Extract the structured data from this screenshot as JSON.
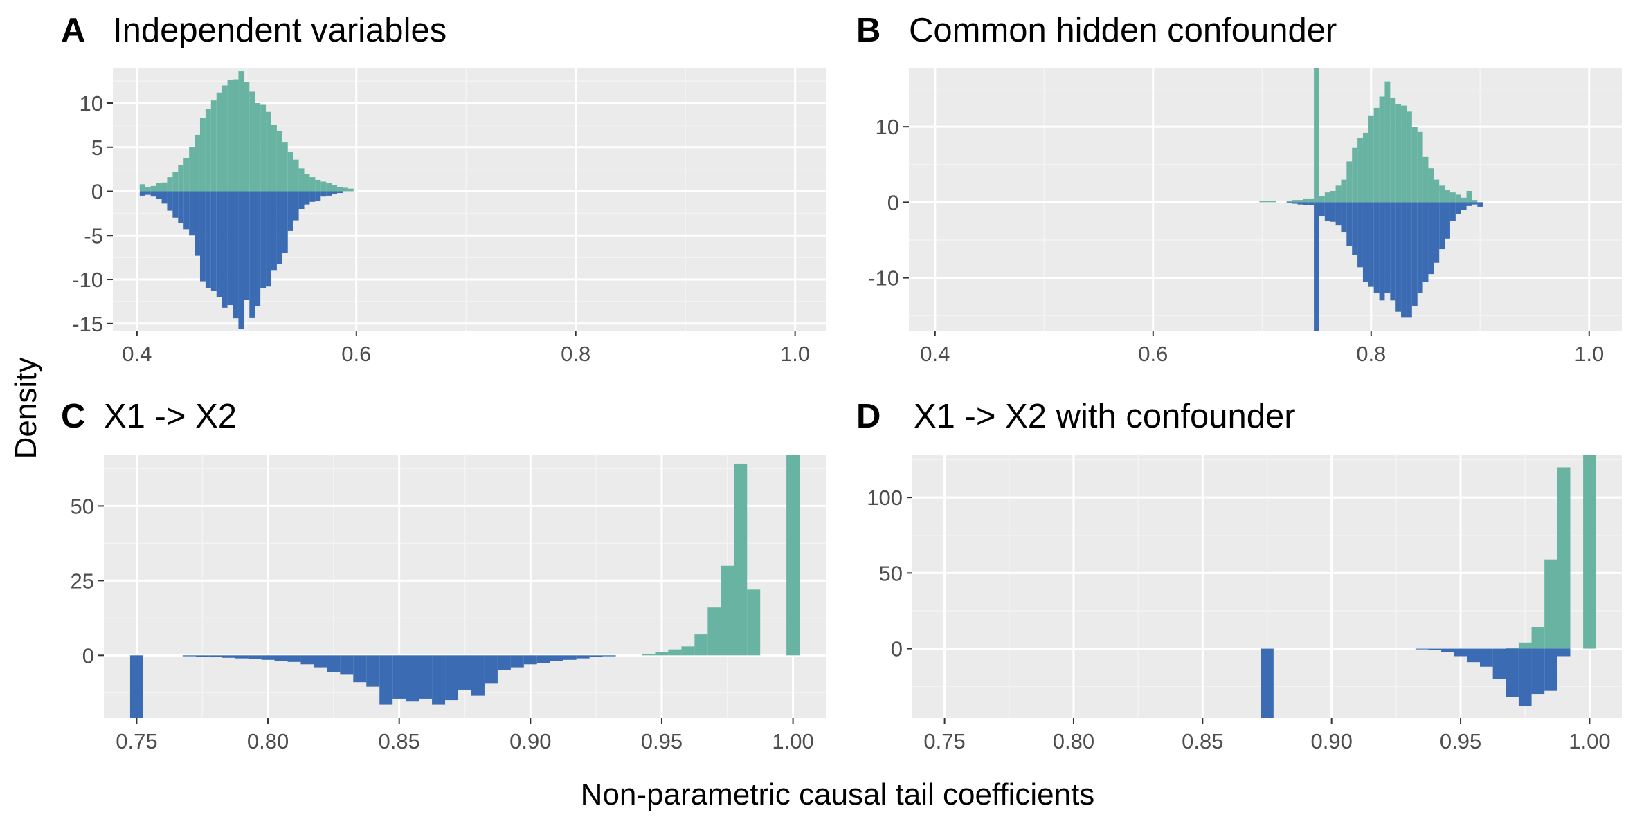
{
  "figure": {
    "ylabel": "Density",
    "xlabel": "Non-parametric causal tail coefficients"
  },
  "colors": {
    "upper": "#69b3a2",
    "lower": "#3a6bb3",
    "panel_bg": "#ebebeb",
    "grid_major": "#ffffff",
    "grid_minor": "#f4f4f4"
  },
  "chart_data": [
    {
      "type": "bar",
      "letter": "A",
      "title": "Independent variables",
      "xlim": [
        0.378,
        1.028
      ],
      "ylim": [
        -15.8,
        14.0
      ],
      "xticks": [
        0.4,
        0.6,
        0.8,
        1.0
      ],
      "xtick_labels": [
        "0.4",
        "0.6",
        "0.8",
        "1.0"
      ],
      "yticks": [
        10,
        5,
        0,
        -5,
        -10,
        -15
      ],
      "ytick_labels": [
        "10",
        "5",
        "0",
        "-5",
        "-10",
        "-15"
      ],
      "bin_width": 0.005,
      "upper": {
        "x": [
          0.405,
          0.41,
          0.415,
          0.42,
          0.425,
          0.43,
          0.435,
          0.44,
          0.445,
          0.45,
          0.455,
          0.46,
          0.465,
          0.47,
          0.475,
          0.48,
          0.485,
          0.49,
          0.495,
          0.5,
          0.505,
          0.51,
          0.515,
          0.52,
          0.525,
          0.53,
          0.535,
          0.54,
          0.545,
          0.55,
          0.555,
          0.56,
          0.565,
          0.57,
          0.575,
          0.58,
          0.585,
          0.59,
          0.595
        ],
        "y": [
          0.8,
          0.5,
          0.6,
          0.9,
          1.0,
          1.6,
          2.2,
          3.0,
          3.8,
          5.0,
          6.4,
          8.3,
          9.3,
          10.3,
          11.2,
          12.0,
          12.6,
          12.7,
          13.6,
          12.4,
          11.3,
          10.0,
          9.8,
          9.0,
          7.5,
          6.8,
          5.6,
          4.5,
          3.6,
          2.6,
          2.0,
          1.6,
          1.3,
          1.1,
          0.9,
          0.7,
          0.5,
          0.4,
          0.3
        ]
      },
      "lower": {
        "x": [
          0.405,
          0.41,
          0.415,
          0.42,
          0.425,
          0.43,
          0.435,
          0.44,
          0.445,
          0.45,
          0.455,
          0.46,
          0.465,
          0.47,
          0.475,
          0.48,
          0.485,
          0.49,
          0.495,
          0.5,
          0.505,
          0.51,
          0.515,
          0.52,
          0.525,
          0.53,
          0.535,
          0.54,
          0.545,
          0.55,
          0.555,
          0.56,
          0.565,
          0.57,
          0.575,
          0.58,
          0.585
        ],
        "y": [
          -0.5,
          -0.4,
          -0.6,
          -0.9,
          -1.4,
          -2.2,
          -3.0,
          -3.6,
          -4.3,
          -5.0,
          -7.3,
          -10.2,
          -11.0,
          -11.3,
          -12.0,
          -13.2,
          -12.9,
          -14.4,
          -15.6,
          -12.3,
          -14.3,
          -13.0,
          -11.0,
          -10.8,
          -9.0,
          -8.2,
          -7.0,
          -4.5,
          -3.3,
          -2.0,
          -1.5,
          -1.2,
          -1.1,
          -0.6,
          -0.5,
          -0.3,
          -0.2
        ]
      }
    },
    {
      "type": "bar",
      "letter": "B",
      "title": "Common hidden confounder",
      "xlim": [
        0.376,
        1.03
      ],
      "ylim": [
        -17.0,
        17.8
      ],
      "xticks": [
        0.4,
        0.6,
        0.8,
        1.0
      ],
      "xtick_labels": [
        "0.4",
        "0.6",
        "0.8",
        "1.0"
      ],
      "yticks": [
        10,
        0,
        -10
      ],
      "ytick_labels": [
        "10",
        "0",
        "-10"
      ],
      "bin_width": 0.005,
      "upper": {
        "x": [
          0.7,
          0.705,
          0.71,
          0.725,
          0.73,
          0.735,
          0.74,
          0.745,
          0.75,
          0.755,
          0.76,
          0.765,
          0.77,
          0.775,
          0.78,
          0.785,
          0.79,
          0.795,
          0.8,
          0.805,
          0.81,
          0.815,
          0.82,
          0.825,
          0.83,
          0.835,
          0.84,
          0.845,
          0.85,
          0.855,
          0.86,
          0.865,
          0.87,
          0.875,
          0.88,
          0.885,
          0.89,
          0.895
        ],
        "y": [
          0.2,
          0.2,
          0.2,
          0.2,
          0.3,
          0.3,
          0.5,
          0.5,
          17.8,
          0.8,
          1.3,
          1.5,
          2.2,
          3.0,
          5.4,
          7.2,
          8.5,
          9.2,
          11.5,
          12.5,
          14.0,
          16.0,
          13.8,
          13.0,
          12.8,
          12.0,
          10.0,
          9.3,
          6.0,
          4.5,
          3.0,
          2.2,
          1.6,
          1.3,
          1.0,
          0.6,
          1.5,
          0.3
        ]
      },
      "lower": {
        "x": [
          0.725,
          0.73,
          0.735,
          0.74,
          0.745,
          0.75,
          0.755,
          0.76,
          0.765,
          0.77,
          0.775,
          0.78,
          0.785,
          0.79,
          0.795,
          0.8,
          0.805,
          0.81,
          0.815,
          0.82,
          0.825,
          0.83,
          0.835,
          0.84,
          0.845,
          0.85,
          0.855,
          0.86,
          0.865,
          0.87,
          0.875,
          0.88,
          0.885,
          0.89,
          0.895,
          0.9
        ],
        "y": [
          -0.1,
          -0.2,
          -0.3,
          -0.4,
          -0.4,
          -17.0,
          -1.8,
          -2.5,
          -2.6,
          -3.0,
          -4.0,
          -5.8,
          -7.0,
          -8.6,
          -10.5,
          -11.2,
          -12.0,
          -13.0,
          -12.0,
          -13.0,
          -14.5,
          -15.2,
          -15.2,
          -13.7,
          -12.0,
          -10.5,
          -9.5,
          -8.0,
          -6.2,
          -4.8,
          -2.5,
          -1.6,
          -1.0,
          -0.5,
          -0.3,
          -0.6
        ]
      }
    },
    {
      "type": "bar",
      "letter": "C",
      "title": "X1 -> X2",
      "xlim": [
        0.7375,
        1.0125
      ],
      "ylim": [
        -21.0,
        67.0
      ],
      "xticks": [
        0.75,
        0.8,
        0.85,
        0.9,
        0.95,
        1.0
      ],
      "xtick_labels": [
        "0.75",
        "0.80",
        "0.85",
        "0.90",
        "0.95",
        "1.00"
      ],
      "yticks": [
        50,
        25,
        0
      ],
      "ytick_labels": [
        "50",
        "25",
        "0"
      ],
      "bin_width": 0.005,
      "upper": {
        "x": [
          0.945,
          0.95,
          0.955,
          0.96,
          0.965,
          0.97,
          0.975,
          0.98,
          0.985,
          1.0
        ],
        "y": [
          0.5,
          1.0,
          2.0,
          3.0,
          7.0,
          16.0,
          30.0,
          64.0,
          22.0,
          67.0
        ]
      },
      "lower": {
        "x": [
          0.75,
          0.77,
          0.775,
          0.78,
          0.785,
          0.79,
          0.795,
          0.8,
          0.805,
          0.81,
          0.815,
          0.82,
          0.825,
          0.83,
          0.835,
          0.84,
          0.845,
          0.85,
          0.855,
          0.86,
          0.865,
          0.87,
          0.875,
          0.88,
          0.885,
          0.89,
          0.895,
          0.9,
          0.905,
          0.91,
          0.915,
          0.92,
          0.925,
          0.93
        ],
        "y": [
          -21.0,
          -0.3,
          -0.5,
          -0.5,
          -0.8,
          -1.0,
          -1.2,
          -1.5,
          -2.0,
          -2.2,
          -3.0,
          -4.0,
          -5.5,
          -6.5,
          -9.0,
          -10.5,
          -16.5,
          -14.5,
          -15.5,
          -14.5,
          -16.5,
          -15.0,
          -11.5,
          -13.5,
          -9.5,
          -5.0,
          -4.0,
          -3.0,
          -2.5,
          -2.0,
          -1.5,
          -1.0,
          -0.5,
          -0.3
        ]
      }
    },
    {
      "type": "bar",
      "letter": "D",
      "title": "X1 -> X2 with confounder",
      "xlim": [
        0.7375,
        1.0125
      ],
      "ylim": [
        -46.0,
        128.0
      ],
      "xticks": [
        0.75,
        0.8,
        0.85,
        0.9,
        0.95,
        1.0
      ],
      "xtick_labels": [
        "0.75",
        "0.80",
        "0.85",
        "0.90",
        "0.95",
        "1.00"
      ],
      "yticks": [
        100,
        50,
        0
      ],
      "ytick_labels": [
        "100",
        "50",
        "0"
      ],
      "bin_width": 0.005,
      "upper": {
        "x": [
          0.97,
          0.975,
          0.98,
          0.985,
          0.99,
          1.0
        ],
        "y": [
          0.7,
          4.0,
          14.0,
          59.0,
          120.0,
          128.0
        ]
      },
      "lower": {
        "x": [
          0.875,
          0.935,
          0.94,
          0.945,
          0.95,
          0.955,
          0.96,
          0.965,
          0.97,
          0.975,
          0.98,
          0.985,
          0.99
        ],
        "y": [
          -46.0,
          -0.5,
          -1.0,
          -2.5,
          -5.0,
          -9.0,
          -12.0,
          -20.0,
          -32.0,
          -38.0,
          -30.0,
          -28.0,
          -5.0
        ]
      }
    }
  ]
}
